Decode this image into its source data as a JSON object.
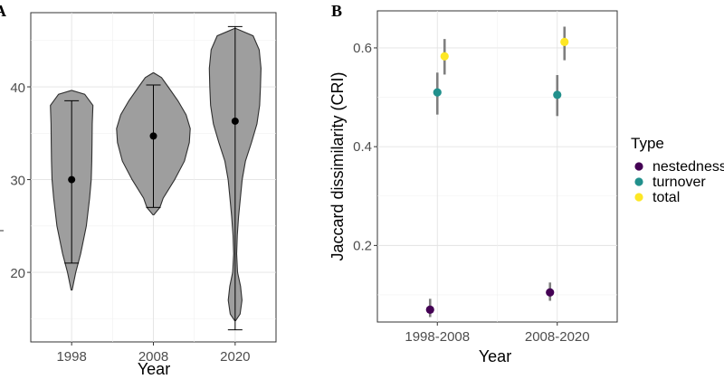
{
  "chart_data": [
    {
      "panel": "A",
      "type": "violin",
      "xlabel": "Year",
      "ylabel": "",
      "ylim": [
        12.5,
        48
      ],
      "yticks": [
        20,
        30,
        40
      ],
      "categories": [
        "1998",
        "2008",
        "2020"
      ],
      "violins": [
        {
          "category": "1998",
          "mean": 30.0,
          "err_low": 21.0,
          "err_high": 38.5,
          "min": 18.1,
          "max": 39.6,
          "profile": [
            [
              18.1,
              0.3
            ],
            [
              20,
              2.5
            ],
            [
              22,
              5.5
            ],
            [
              25,
              9
            ],
            [
              28,
              11
            ],
            [
              30,
              12
            ],
            [
              32,
              12.3
            ],
            [
              34,
              12.5
            ],
            [
              36,
              12.6
            ],
            [
              38,
              13
            ],
            [
              39.2,
              8
            ],
            [
              39.6,
              0.3
            ]
          ]
        },
        {
          "category": "2008",
          "mean": 34.7,
          "err_low": 27.0,
          "err_high": 40.2,
          "min": 26.2,
          "max": 41.5,
          "profile": [
            [
              26.2,
              0.3
            ],
            [
              27,
              4
            ],
            [
              28,
              6
            ],
            [
              30,
              13
            ],
            [
              32,
              19
            ],
            [
              34,
              22
            ],
            [
              35.5,
              22.5
            ],
            [
              37,
              20
            ],
            [
              38.5,
              15
            ],
            [
              40,
              9
            ],
            [
              41,
              5
            ],
            [
              41.5,
              0.3
            ]
          ]
        },
        {
          "category": "2020",
          "mean": 36.3,
          "err_low": 13.8,
          "err_high": 46.5,
          "min": 14.8,
          "max": 46.3,
          "profile": [
            [
              14.8,
              0.3
            ],
            [
              15.5,
              3
            ],
            [
              17,
              4.2
            ],
            [
              18.5,
              3.3
            ],
            [
              20,
              1.5
            ],
            [
              22,
              0.9
            ],
            [
              24,
              1.3
            ],
            [
              26,
              2.1
            ],
            [
              28,
              3.2
            ],
            [
              30,
              4.3
            ],
            [
              32,
              6.3
            ],
            [
              34,
              10
            ],
            [
              36,
              13.3
            ],
            [
              38,
              15
            ],
            [
              40,
              15.5
            ],
            [
              42,
              15.8
            ],
            [
              44,
              14.7
            ],
            [
              45.5,
              11
            ],
            [
              46.3,
              0.3
            ]
          ]
        }
      ]
    },
    {
      "panel": "B",
      "type": "pointrange",
      "xlabel": "Year",
      "ylabel": "Jaccard dissimilarity (CRI)",
      "ylim": [
        0.045,
        0.675
      ],
      "yticks": [
        "0.2",
        "0.4",
        "0.6"
      ],
      "ytick_values": [
        0.2,
        0.4,
        0.6
      ],
      "categories": [
        "1998-2008",
        "2008-2020"
      ],
      "legend": {
        "title": "Type",
        "position": "right"
      },
      "series": [
        {
          "name": "nestedness",
          "color": "#440154",
          "values": [
            0.07,
            0.105
          ],
          "lower": [
            0.055,
            0.088
          ],
          "upper": [
            0.092,
            0.125
          ]
        },
        {
          "name": "turnover",
          "color": "#21908C",
          "values": [
            0.51,
            0.505
          ],
          "lower": [
            0.465,
            0.462
          ],
          "upper": [
            0.55,
            0.545
          ]
        },
        {
          "name": "total",
          "color": "#FDE725",
          "values": [
            0.583,
            0.612
          ],
          "lower": [
            0.546,
            0.575
          ],
          "upper": [
            0.618,
            0.643
          ]
        }
      ]
    }
  ]
}
